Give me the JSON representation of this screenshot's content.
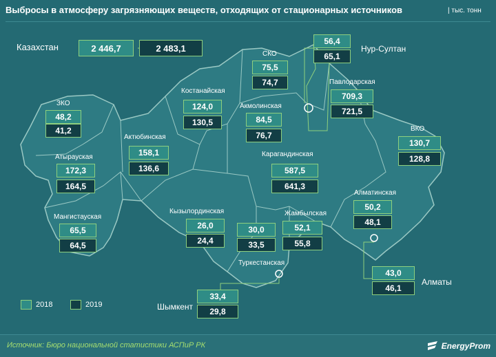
{
  "header": {
    "title": "Выбросы в атмосферу загрязняющих веществ, отходящих от стационарных источников",
    "unit": "| тыс. тонн"
  },
  "kazakhstan": {
    "label": "Казахстан",
    "v2018": "2 446,7",
    "v2019": "2 483,1"
  },
  "regions": [
    {
      "id": "zko",
      "label": "ЗКО",
      "v2018": "48,2",
      "v2019": "41,2"
    },
    {
      "id": "aktobe",
      "label": "Актюбинская",
      "v2018": "158,1",
      "v2019": "136,6"
    },
    {
      "id": "atyrau",
      "label": "Атырауская",
      "v2018": "172,3",
      "v2019": "164,5"
    },
    {
      "id": "mangistau",
      "label": "Мангистауская",
      "v2018": "65,5",
      "v2019": "64,5"
    },
    {
      "id": "kostanay",
      "label": "Костанайская",
      "v2018": "124,0",
      "v2019": "130,5"
    },
    {
      "id": "sko",
      "label": "СКО",
      "v2018": "75,5",
      "v2019": "74,7"
    },
    {
      "id": "akmola",
      "label": "Акмолинская",
      "v2018": "84,5",
      "v2019": "76,7"
    },
    {
      "id": "nursultan",
      "label": "Нур-Султан",
      "v2018": "56,4",
      "v2019": "65,1"
    },
    {
      "id": "pavlodar",
      "label": "Павлодарская",
      "v2018": "709,3",
      "v2019": "721,5"
    },
    {
      "id": "vko",
      "label": "ВКО",
      "v2018": "130,7",
      "v2019": "128,8"
    },
    {
      "id": "karaganda",
      "label": "Карагандинская",
      "v2018": "587,5",
      "v2019": "641,3"
    },
    {
      "id": "kyzylorda",
      "label": "Кызылординская",
      "v2018": "26,0",
      "v2019": "24,4"
    },
    {
      "id": "turkestan",
      "label": "Туркестанская",
      "v2018": "30,0",
      "v2019": "33,5"
    },
    {
      "id": "zhambyl",
      "label": "Жамбылская",
      "v2018": "52,1",
      "v2019": "55,8"
    },
    {
      "id": "almaty_region",
      "label": "Алматинская",
      "v2018": "50,2",
      "v2019": "48,1"
    },
    {
      "id": "almaty_city",
      "label": "Алматы",
      "v2018": "43,0",
      "v2019": "46,1"
    },
    {
      "id": "shymkent",
      "label": "Шымкент",
      "v2018": "33,4",
      "v2019": "29,8"
    }
  ],
  "legend": {
    "y2018": "2018",
    "y2019": "2019"
  },
  "colors": {
    "background": "#246a73",
    "map_fill": "#2e7b83",
    "border": "#8fd07e",
    "box_2018": "#2f8c86",
    "box_2019": "#123e45",
    "source_text": "#a7df6f"
  },
  "footer": {
    "source": "Источник: Бюро национальной статистики АСПиР РК",
    "logo": "EnergyProm"
  }
}
